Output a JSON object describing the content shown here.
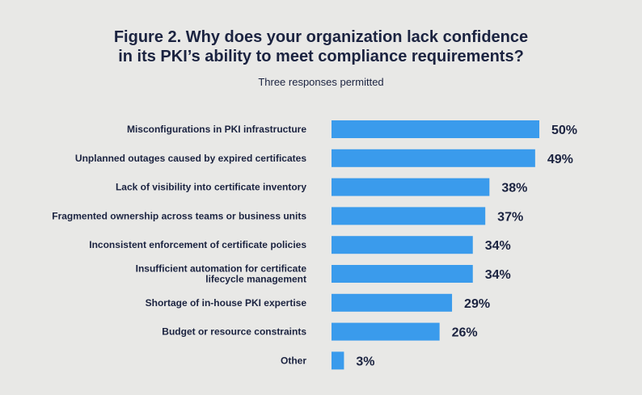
{
  "chart_data": {
    "type": "bar",
    "orientation": "horizontal",
    "title_lines": [
      "Figure 2. Why does your organization lack confidence",
      "in its PKI’s ability to meet compliance requirements?"
    ],
    "subtitle": "Three responses permitted",
    "categories": [
      [
        "Misconfigurations in PKI infrastructure"
      ],
      [
        "Unplanned outages caused by expired certificates"
      ],
      [
        "Lack of visibility into certificate inventory"
      ],
      [
        "Fragmented ownership across teams or business units"
      ],
      [
        "Inconsistent enforcement of certificate policies"
      ],
      [
        "Insufficient automation for certificate",
        "lifecycle management"
      ],
      [
        "Shortage of in-house PKI expertise"
      ],
      [
        "Budget or resource constraints"
      ],
      [
        "Other"
      ]
    ],
    "values": [
      50,
      49,
      38,
      37,
      34,
      34,
      29,
      26,
      3
    ],
    "value_labels": [
      "50%",
      "49%",
      "38%",
      "37%",
      "34%",
      "34%",
      "29%",
      "26%",
      "3%"
    ],
    "unit": "%",
    "xlim": [
      0,
      50
    ],
    "grid": false,
    "bar_color": "#3a9bec"
  }
}
